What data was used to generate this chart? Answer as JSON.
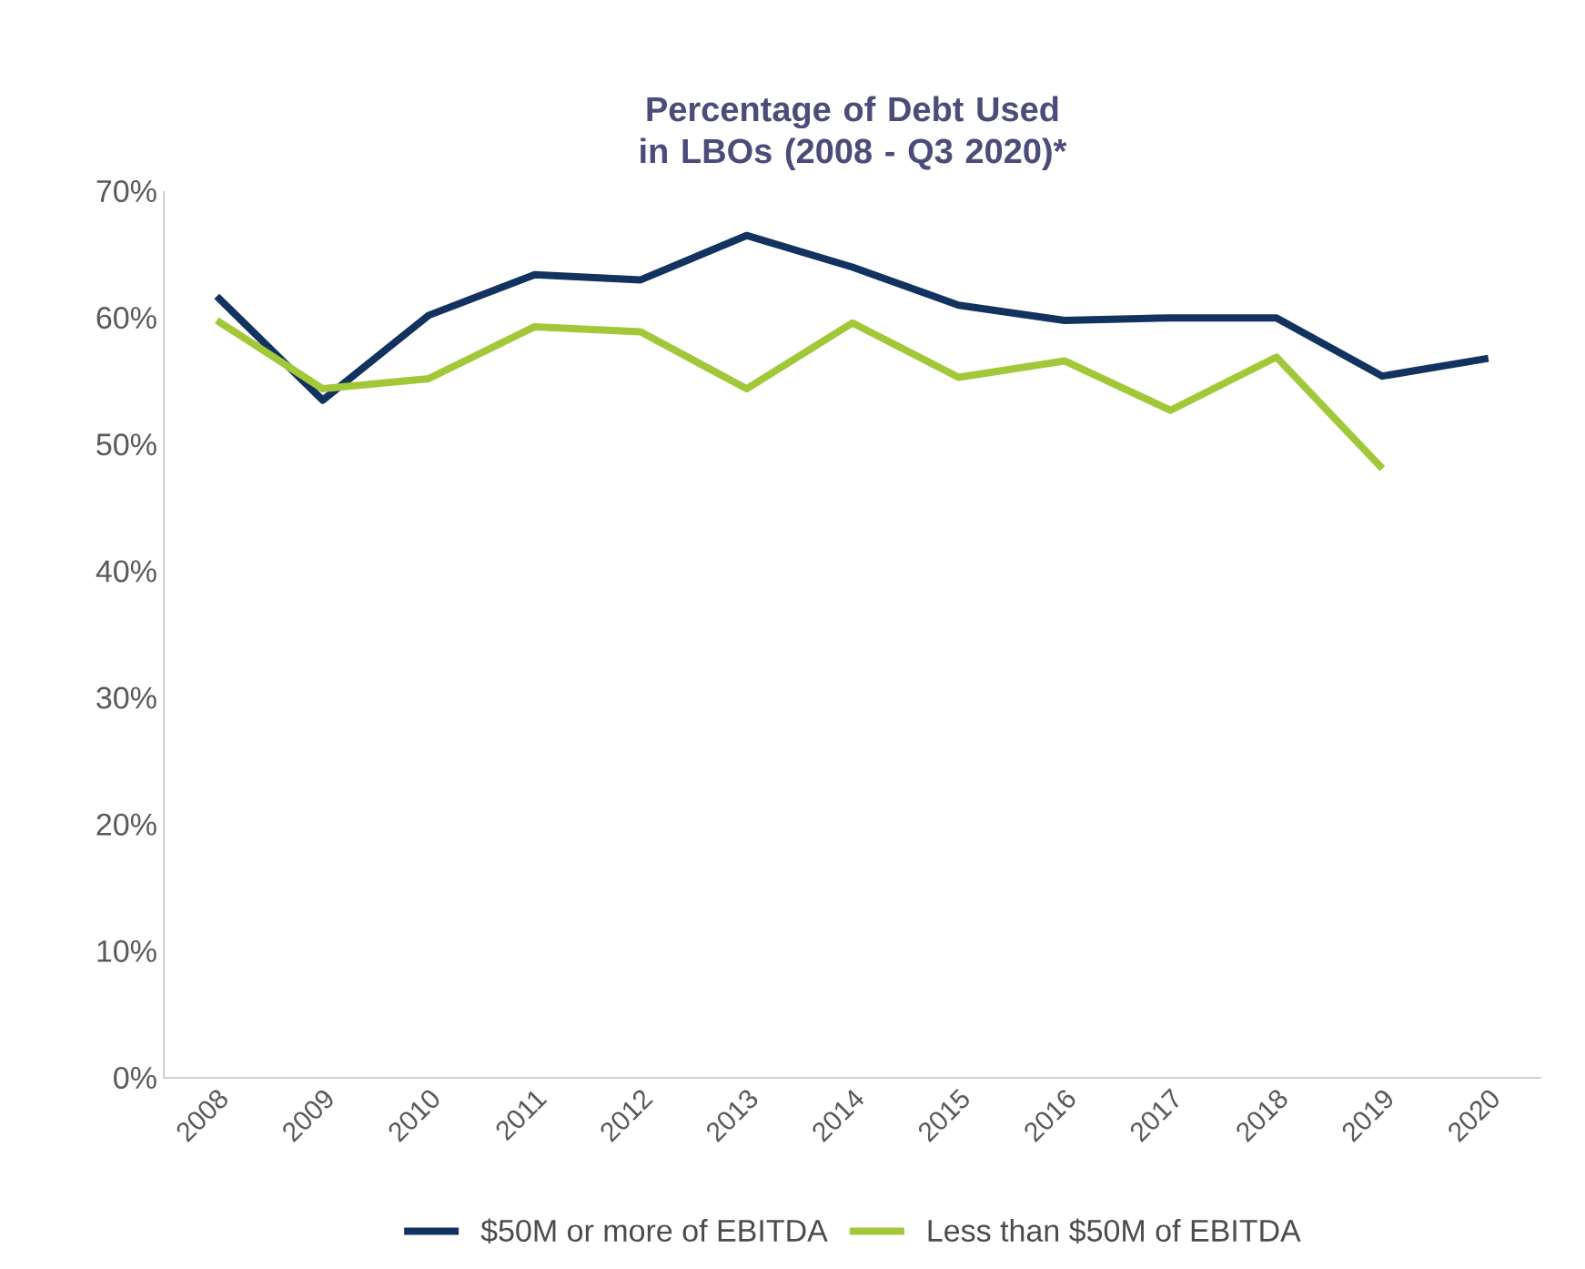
{
  "chart_data": {
    "type": "line",
    "title": "Percentage of Debt Used in LBOs (2008 - Q3 2020)*",
    "categories": [
      "2008",
      "2009",
      "2010",
      "2011",
      "2012",
      "2013",
      "2014",
      "2015",
      "2016",
      "2017",
      "2018",
      "2019",
      "2020"
    ],
    "series": [
      {
        "name": "$50M  or more of EBITDA",
        "color": "#12325f",
        "values": [
          61.7,
          53.5,
          60.2,
          63.4,
          63.0,
          66.5,
          64.0,
          61.0,
          59.8,
          60.0,
          60.0,
          55.4,
          56.8
        ]
      },
      {
        "name": "Less than $50M of EBITDA",
        "color": "#a2c83a",
        "values": [
          59.8,
          54.4,
          55.2,
          59.3,
          58.9,
          54.4,
          59.6,
          55.3,
          56.6,
          52.7,
          56.9,
          48.1,
          null
        ]
      }
    ],
    "ylim": [
      0,
      70
    ],
    "yticks": [
      {
        "value": 0,
        "label": "0%"
      },
      {
        "value": 10,
        "label": "10%"
      },
      {
        "value": 20,
        "label": "20%"
      },
      {
        "value": 30,
        "label": "30%"
      },
      {
        "value": 40,
        "label": "40%"
      },
      {
        "value": 50,
        "label": "50%"
      },
      {
        "value": 60,
        "label": "60%"
      },
      {
        "value": 70,
        "label": "70%"
      }
    ],
    "grid": false,
    "legend": "bottom",
    "marker": "none",
    "line_style": "solid"
  }
}
